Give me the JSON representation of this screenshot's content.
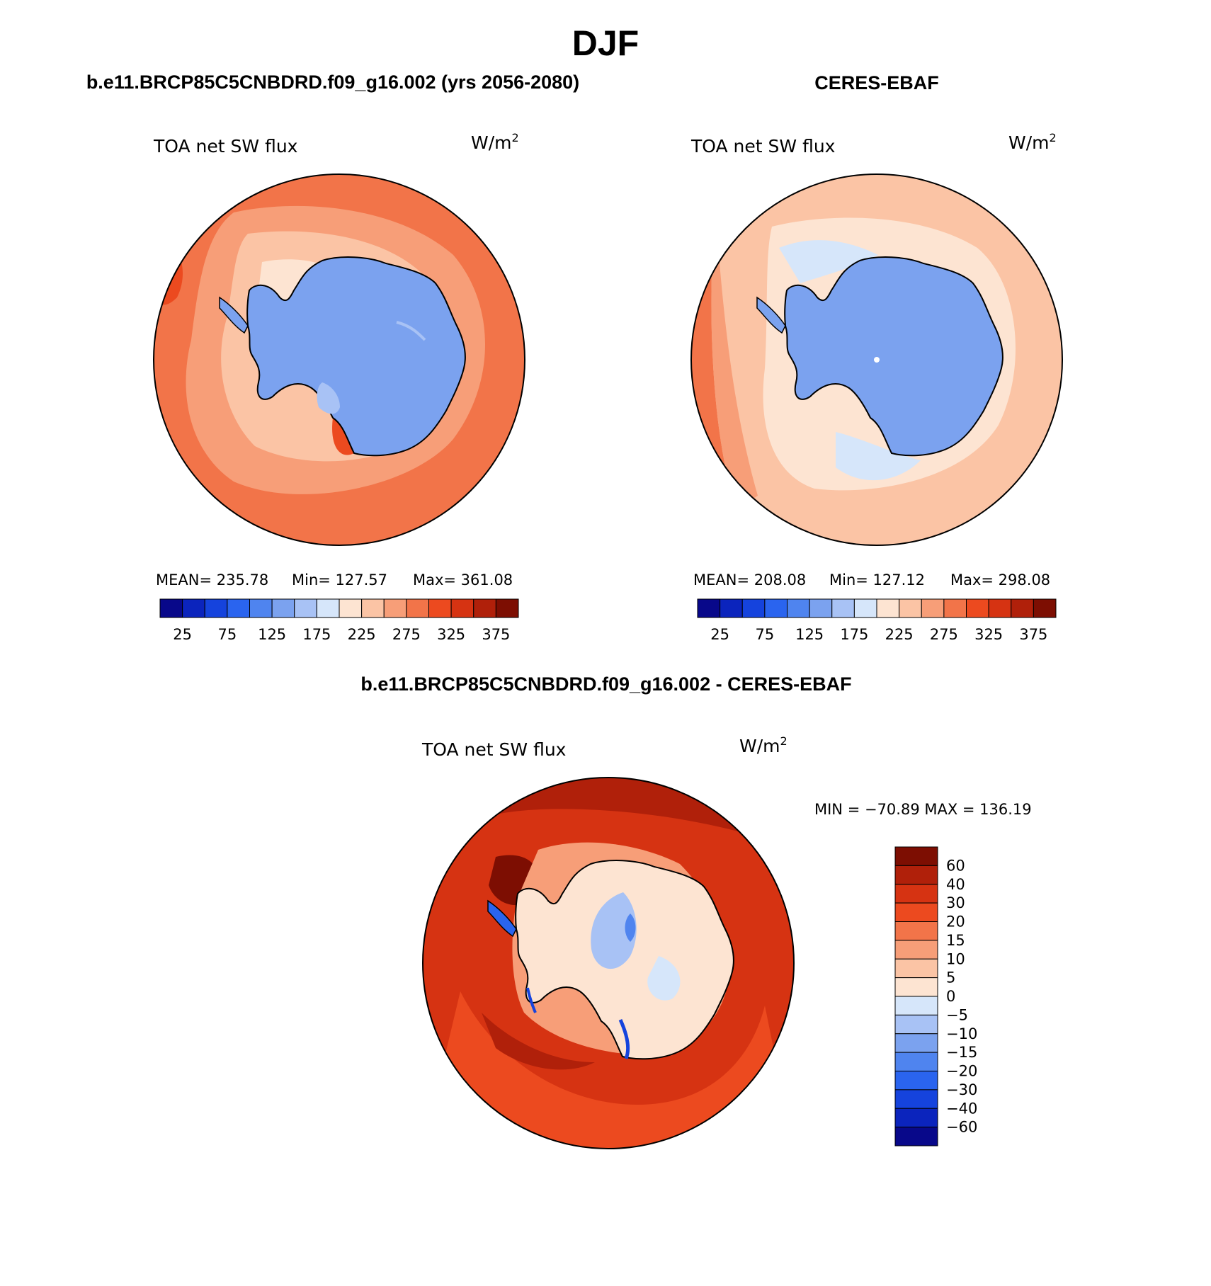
{
  "main_title": "DJF",
  "panel1": {
    "case_title": "b.e11.BRCP85C5CNBDRD.f09_g16.002 (yrs 2056-2080)",
    "variable": "TOA net SW flux",
    "units_base": "W/m",
    "units_exp": "2",
    "mean_label": "MEAN= 235.78",
    "min_label": "Min= 127.57",
    "max_label": "Max= 361.08"
  },
  "panel2": {
    "case_title": "CERES-EBAF",
    "variable": "TOA net SW flux",
    "units_base": "W/m",
    "units_exp": "2",
    "mean_label": "MEAN= 208.08",
    "min_label": "Min= 127.12",
    "max_label": "Max= 298.08"
  },
  "panel3": {
    "case_title": "b.e11.BRCP85C5CNBDRD.f09_g16.002 - CERES-EBAF",
    "variable": "TOA net SW flux",
    "units_base": "W/m",
    "units_exp": "2",
    "minmax_label": "MIN = −70.89 MAX = 136.19"
  },
  "chart_data": [
    {
      "type": "heatmap",
      "title": "b.e11.BRCP85C5CNBDRD.f09_g16.002 (yrs 2056-2080)",
      "projection": "south polar stereographic",
      "variable": "TOA net SW flux",
      "units": "W/m2",
      "mean": 235.78,
      "min": 127.57,
      "max": 361.08,
      "colorbar_ticks": [
        "25",
        "75",
        "125",
        "175",
        "225",
        "275",
        "325",
        "375"
      ],
      "colors": [
        "#08088a",
        "#0b24bd",
        "#1543dd",
        "#2a64ef",
        "#4f84ef",
        "#7ba2ef",
        "#a8c2f5",
        "#d6e6fa",
        "#fde4d2",
        "#fbc4a5",
        "#f79e78",
        "#f27449",
        "#ec4a1f",
        "#d63312",
        "#b0200a",
        "#7d0e02"
      ]
    },
    {
      "type": "heatmap",
      "title": "CERES-EBAF",
      "projection": "south polar stereographic",
      "variable": "TOA net SW flux",
      "units": "W/m2",
      "mean": 208.08,
      "min": 127.12,
      "max": 298.08,
      "colorbar_ticks": [
        "25",
        "75",
        "125",
        "175",
        "225",
        "275",
        "325",
        "375"
      ],
      "colors": [
        "#08088a",
        "#0b24bd",
        "#1543dd",
        "#2a64ef",
        "#4f84ef",
        "#7ba2ef",
        "#a8c2f5",
        "#d6e6fa",
        "#fde4d2",
        "#fbc4a5",
        "#f79e78",
        "#f27449",
        "#ec4a1f",
        "#d63312",
        "#b0200a",
        "#7d0e02"
      ]
    },
    {
      "type": "heatmap",
      "title": "b.e11.BRCP85C5CNBDRD.f09_g16.002 - CERES-EBAF",
      "projection": "south polar stereographic",
      "variable": "TOA net SW flux",
      "units": "W/m2",
      "min": -70.89,
      "max": 136.19,
      "colorbar_ticks": [
        "60",
        "40",
        "30",
        "20",
        "15",
        "10",
        "5",
        "0",
        "−5",
        "−10",
        "−15",
        "−20",
        "−30",
        "−40",
        "−60"
      ],
      "colors": [
        "#7d0e02",
        "#b0200a",
        "#d63312",
        "#ec4a1f",
        "#f27449",
        "#f79e78",
        "#fbc4a5",
        "#fde4d2",
        "#d6e6fa",
        "#a8c2f5",
        "#7ba2ef",
        "#4f84ef",
        "#2a64ef",
        "#1543dd",
        "#0b24bd",
        "#08088a"
      ]
    }
  ]
}
